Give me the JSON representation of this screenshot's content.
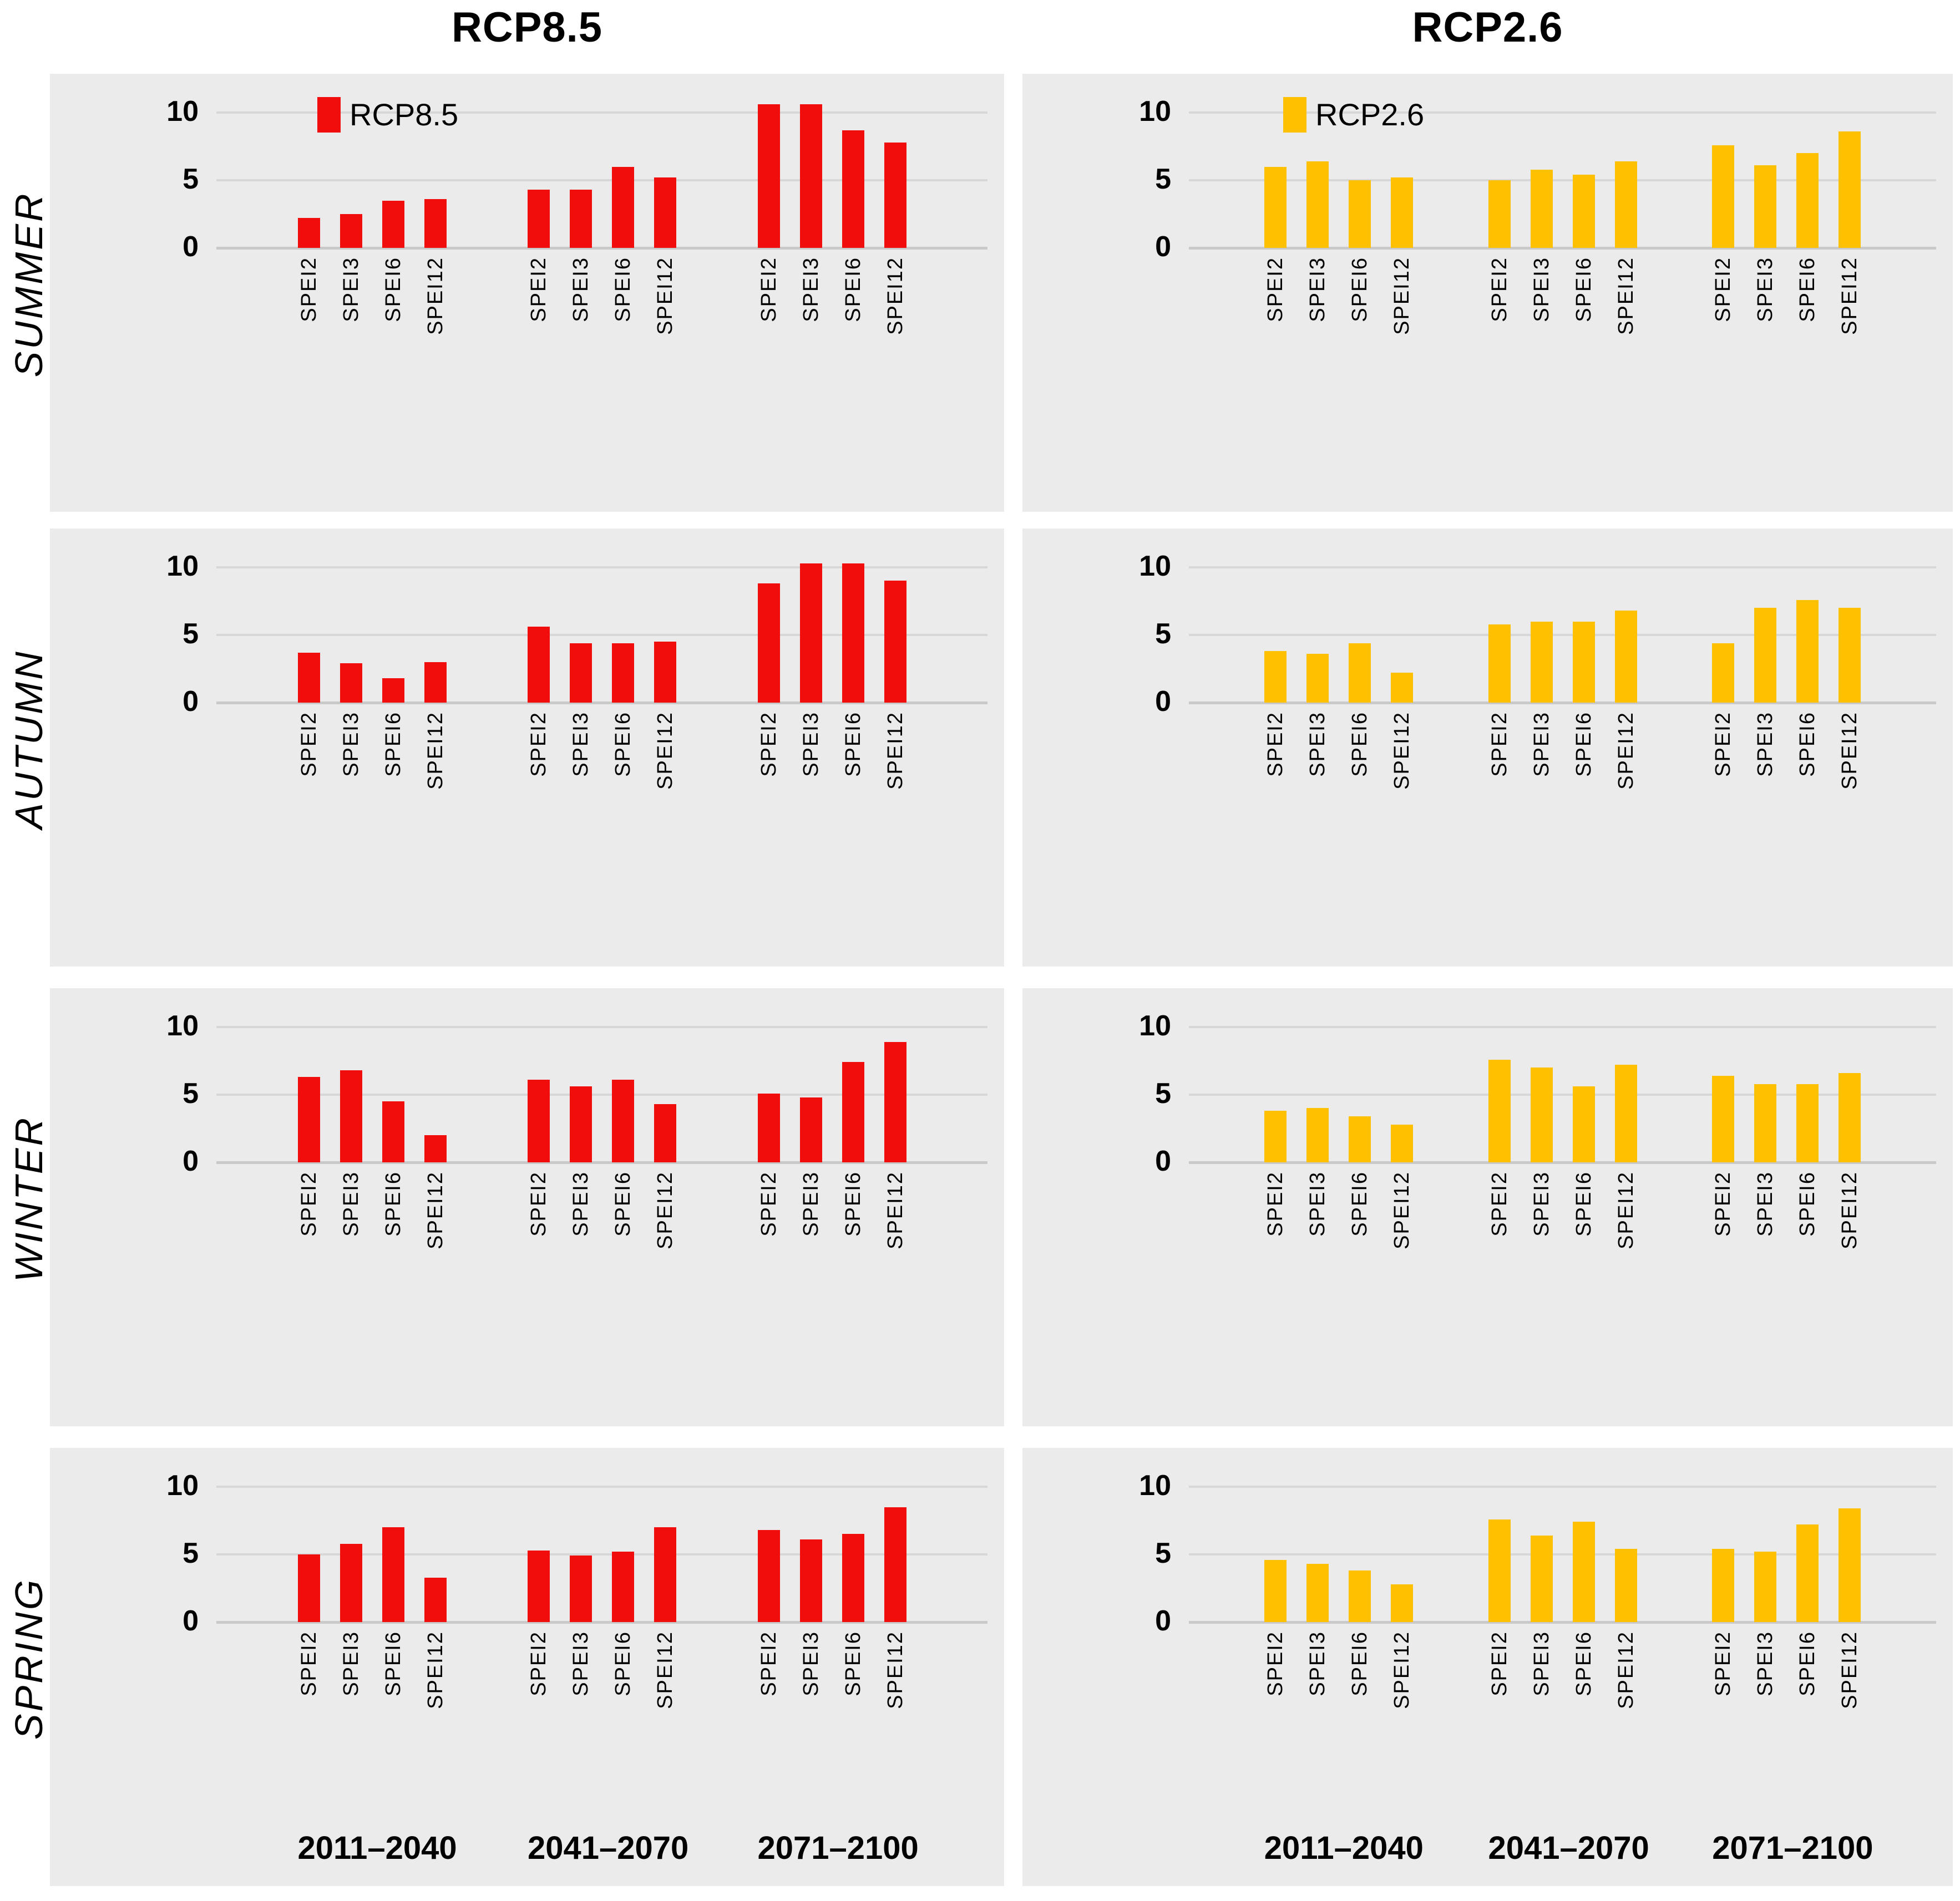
{
  "columns": [
    {
      "title": "RCP8.5"
    },
    {
      "title": "RCP2.6"
    }
  ],
  "seasons": [
    "SUMMER",
    "AUTUMN",
    "WINTER",
    "SPRING"
  ],
  "legend": [
    {
      "label": "RCP8.5",
      "color": "#F20D0D"
    },
    {
      "label": "RCP2.6",
      "color": "#FFC000"
    }
  ],
  "colors": {
    "rcp85": "#F20D0D",
    "rcp26": "#FFC000",
    "panel_background": "#EBEBEB",
    "gridline": "#D7D7D7",
    "text": "#000000"
  },
  "periods": [
    "2011–2040",
    "2041–2070",
    "2071–2100"
  ],
  "spei_categories": [
    "SPEI2",
    "SPEI3",
    "SPEI6",
    "SPEI12"
  ],
  "yticks": [
    0,
    5,
    10
  ],
  "chart_data": [
    {
      "type": "bar",
      "season": "SUMMER",
      "scenario": "RCP8.5",
      "color": "#F20D0D",
      "categories": [
        "SPEI2",
        "SPEI3",
        "SPEI6",
        "SPEI12"
      ],
      "yticks": [
        0,
        5,
        10
      ],
      "ylim": [
        0,
        12.9
      ],
      "grid": true,
      "legend": {
        "visible": true,
        "label": "RCP8.5"
      },
      "series": [
        {
          "period": "2011–2040",
          "values": [
            2.2,
            2.5,
            3.5,
            3.6
          ]
        },
        {
          "period": "2041–2070",
          "values": [
            4.3,
            4.3,
            6.0,
            5.2
          ]
        },
        {
          "period": "2071–2100",
          "values": [
            10.6,
            10.6,
            8.7,
            7.8
          ]
        }
      ]
    },
    {
      "type": "bar",
      "season": "SUMMER",
      "scenario": "RCP2.6",
      "color": "#FFC000",
      "categories": [
        "SPEI2",
        "SPEI3",
        "SPEI6",
        "SPEI12"
      ],
      "yticks": [
        0,
        5,
        10
      ],
      "ylim": [
        0,
        12.9
      ],
      "grid": true,
      "legend": {
        "visible": true,
        "label": "RCP2.6"
      },
      "series": [
        {
          "period": "2011–2040",
          "values": [
            6.0,
            6.4,
            5.0,
            5.2
          ]
        },
        {
          "period": "2041–2070",
          "values": [
            5.0,
            5.8,
            5.4,
            6.4
          ]
        },
        {
          "period": "2071–2100",
          "values": [
            7.6,
            6.1,
            7.0,
            8.6
          ]
        }
      ]
    },
    {
      "type": "bar",
      "season": "AUTUMN",
      "scenario": "RCP8.5",
      "color": "#F20D0D",
      "categories": [
        "SPEI2",
        "SPEI3",
        "SPEI6",
        "SPEI12"
      ],
      "yticks": [
        0,
        5,
        10
      ],
      "ylim": [
        0,
        12.9
      ],
      "grid": true,
      "legend": {
        "visible": false,
        "label": ""
      },
      "series": [
        {
          "period": "2011–2040",
          "values": [
            3.7,
            2.9,
            1.8,
            3.0
          ]
        },
        {
          "period": "2041–2070",
          "values": [
            5.6,
            4.4,
            4.4,
            4.5
          ]
        },
        {
          "period": "2071–2100",
          "values": [
            8.8,
            10.3,
            10.3,
            9.0
          ]
        }
      ]
    },
    {
      "type": "bar",
      "season": "AUTUMN",
      "scenario": "RCP2.6",
      "color": "#FFC000",
      "categories": [
        "SPEI2",
        "SPEI3",
        "SPEI6",
        "SPEI12"
      ],
      "yticks": [
        0,
        5,
        10
      ],
      "ylim": [
        0,
        12.9
      ],
      "grid": true,
      "legend": {
        "visible": false,
        "label": ""
      },
      "series": [
        {
          "period": "2011–2040",
          "values": [
            3.8,
            3.6,
            4.4,
            2.2
          ]
        },
        {
          "period": "2041–2070",
          "values": [
            5.8,
            6.0,
            6.0,
            6.8
          ]
        },
        {
          "period": "2071–2100",
          "values": [
            4.4,
            7.0,
            7.6,
            7.0
          ]
        }
      ]
    },
    {
      "type": "bar",
      "season": "WINTER",
      "scenario": "RCP8.5",
      "color": "#F20D0D",
      "categories": [
        "SPEI2",
        "SPEI3",
        "SPEI6",
        "SPEI12"
      ],
      "yticks": [
        0,
        5,
        10
      ],
      "ylim": [
        0,
        12.9
      ],
      "grid": true,
      "legend": {
        "visible": false,
        "label": ""
      },
      "series": [
        {
          "period": "2011–2040",
          "values": [
            6.3,
            6.8,
            4.5,
            2.0
          ]
        },
        {
          "period": "2041–2070",
          "values": [
            6.1,
            5.6,
            6.1,
            4.3
          ]
        },
        {
          "period": "2071–2100",
          "values": [
            5.1,
            4.8,
            7.4,
            8.9
          ]
        }
      ]
    },
    {
      "type": "bar",
      "season": "WINTER",
      "scenario": "RCP2.6",
      "color": "#FFC000",
      "categories": [
        "SPEI2",
        "SPEI3",
        "SPEI6",
        "SPEI12"
      ],
      "yticks": [
        0,
        5,
        10
      ],
      "ylim": [
        0,
        12.9
      ],
      "grid": true,
      "legend": {
        "visible": false,
        "label": ""
      },
      "series": [
        {
          "period": "2011–2040",
          "values": [
            3.8,
            4.0,
            3.4,
            2.8
          ]
        },
        {
          "period": "2041–2070",
          "values": [
            7.6,
            7.0,
            5.6,
            7.2
          ]
        },
        {
          "period": "2071–2100",
          "values": [
            6.4,
            5.8,
            5.8,
            6.6
          ]
        }
      ]
    },
    {
      "type": "bar",
      "season": "SPRING",
      "scenario": "RCP8.5",
      "color": "#F20D0D",
      "categories": [
        "SPEI2",
        "SPEI3",
        "SPEI6",
        "SPEI12"
      ],
      "yticks": [
        0,
        5,
        10
      ],
      "ylim": [
        0,
        12.9
      ],
      "grid": true,
      "legend": {
        "visible": false,
        "label": ""
      },
      "show_period_labels": true,
      "series": [
        {
          "period": "2011–2040",
          "values": [
            5.0,
            5.8,
            7.0,
            3.3
          ]
        },
        {
          "period": "2041–2070",
          "values": [
            5.3,
            4.9,
            5.2,
            7.0
          ]
        },
        {
          "period": "2071–2100",
          "values": [
            6.8,
            6.1,
            6.5,
            8.5
          ]
        }
      ]
    },
    {
      "type": "bar",
      "season": "SPRING",
      "scenario": "RCP2.6",
      "color": "#FFC000",
      "categories": [
        "SPEI2",
        "SPEI3",
        "SPEI6",
        "SPEI12"
      ],
      "yticks": [
        0,
        5,
        10
      ],
      "ylim": [
        0,
        12.9
      ],
      "grid": true,
      "legend": {
        "visible": false,
        "label": ""
      },
      "show_period_labels": true,
      "series": [
        {
          "period": "2011–2040",
          "values": [
            4.6,
            4.3,
            3.8,
            2.8
          ]
        },
        {
          "period": "2041–2070",
          "values": [
            7.6,
            6.4,
            7.4,
            5.4
          ]
        },
        {
          "period": "2071–2100",
          "values": [
            5.4,
            5.2,
            7.2,
            8.4
          ]
        }
      ]
    }
  ]
}
